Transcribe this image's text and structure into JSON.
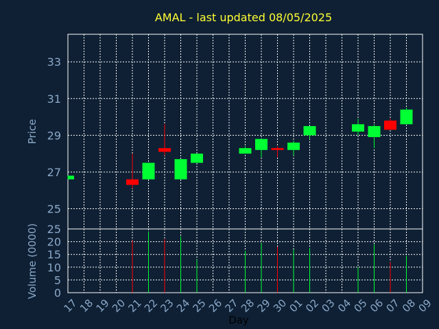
{
  "chart_data": {
    "type": "candlestick",
    "title": "AMAL - last updated 08/05/2025",
    "price_axis": {
      "label": "Price",
      "ylim": [
        23.9,
        34.5
      ],
      "ticks": [
        "25",
        "27",
        "29",
        "31",
        "33"
      ]
    },
    "volume_axis": {
      "label": "Volume (0000)",
      "ylim": [
        0,
        25
      ],
      "ticks": [
        "0",
        "5",
        "10",
        "15",
        "20",
        "25"
      ]
    },
    "x_axis": {
      "label": "Day",
      "ticks": [
        "17",
        "18",
        "19",
        "20",
        "21",
        "22",
        "23",
        "24",
        "25",
        "26",
        "27",
        "28",
        "29",
        "30",
        "01",
        "02",
        "03",
        "04",
        "05",
        "06",
        "07",
        "08",
        "09"
      ]
    },
    "grid": true,
    "colors": {
      "background": "#0f2034",
      "up": "#00ff33",
      "down": "#ff0000",
      "grid": "#ffffff",
      "text": "#8aa8c8",
      "title": "#ffff33"
    },
    "candles": [
      {
        "day": "17",
        "open": 26.6,
        "high": 26.8,
        "low": 26.6,
        "close": 26.8,
        "volume": 0
      },
      {
        "day": "21",
        "open": 26.6,
        "high": 28.0,
        "low": 26.1,
        "close": 26.3,
        "volume": 20.5
      },
      {
        "day": "22",
        "open": 26.6,
        "high": 27.5,
        "low": 26.6,
        "close": 27.5,
        "volume": 24
      },
      {
        "day": "23",
        "open": 28.3,
        "high": 29.6,
        "low": 27.9,
        "close": 28.1,
        "volume": 21
      },
      {
        "day": "24",
        "open": 26.6,
        "high": 27.7,
        "low": 26.6,
        "close": 27.7,
        "volume": 22
      },
      {
        "day": "25",
        "open": 27.5,
        "high": 28.0,
        "low": 27.5,
        "close": 28.0,
        "volume": 13
      },
      {
        "day": "28",
        "open": 28.0,
        "high": 28.4,
        "low": 28.0,
        "close": 28.3,
        "volume": 16.5
      },
      {
        "day": "29",
        "open": 28.2,
        "high": 28.8,
        "low": 27.8,
        "close": 28.8,
        "volume": 19.5
      },
      {
        "day": "30",
        "open": 28.3,
        "high": 28.4,
        "low": 27.8,
        "close": 28.2,
        "volume": 18
      },
      {
        "day": "01",
        "open": 28.2,
        "high": 28.7,
        "low": 27.9,
        "close": 28.6,
        "volume": 17
      },
      {
        "day": "02",
        "open": 29.0,
        "high": 29.5,
        "low": 28.8,
        "close": 29.5,
        "volume": 17.5
      },
      {
        "day": "05",
        "open": 29.2,
        "high": 29.9,
        "low": 29.0,
        "close": 29.6,
        "volume": 10
      },
      {
        "day": "06",
        "open": 28.9,
        "high": 29.6,
        "low": 28.3,
        "close": 29.5,
        "volume": 19
      },
      {
        "day": "07",
        "open": 29.8,
        "high": 29.9,
        "low": 29.3,
        "close": 29.3,
        "volume": 12
      },
      {
        "day": "08",
        "open": 29.6,
        "high": 30.5,
        "low": 29.6,
        "close": 30.4,
        "volume": 14.5
      }
    ]
  }
}
